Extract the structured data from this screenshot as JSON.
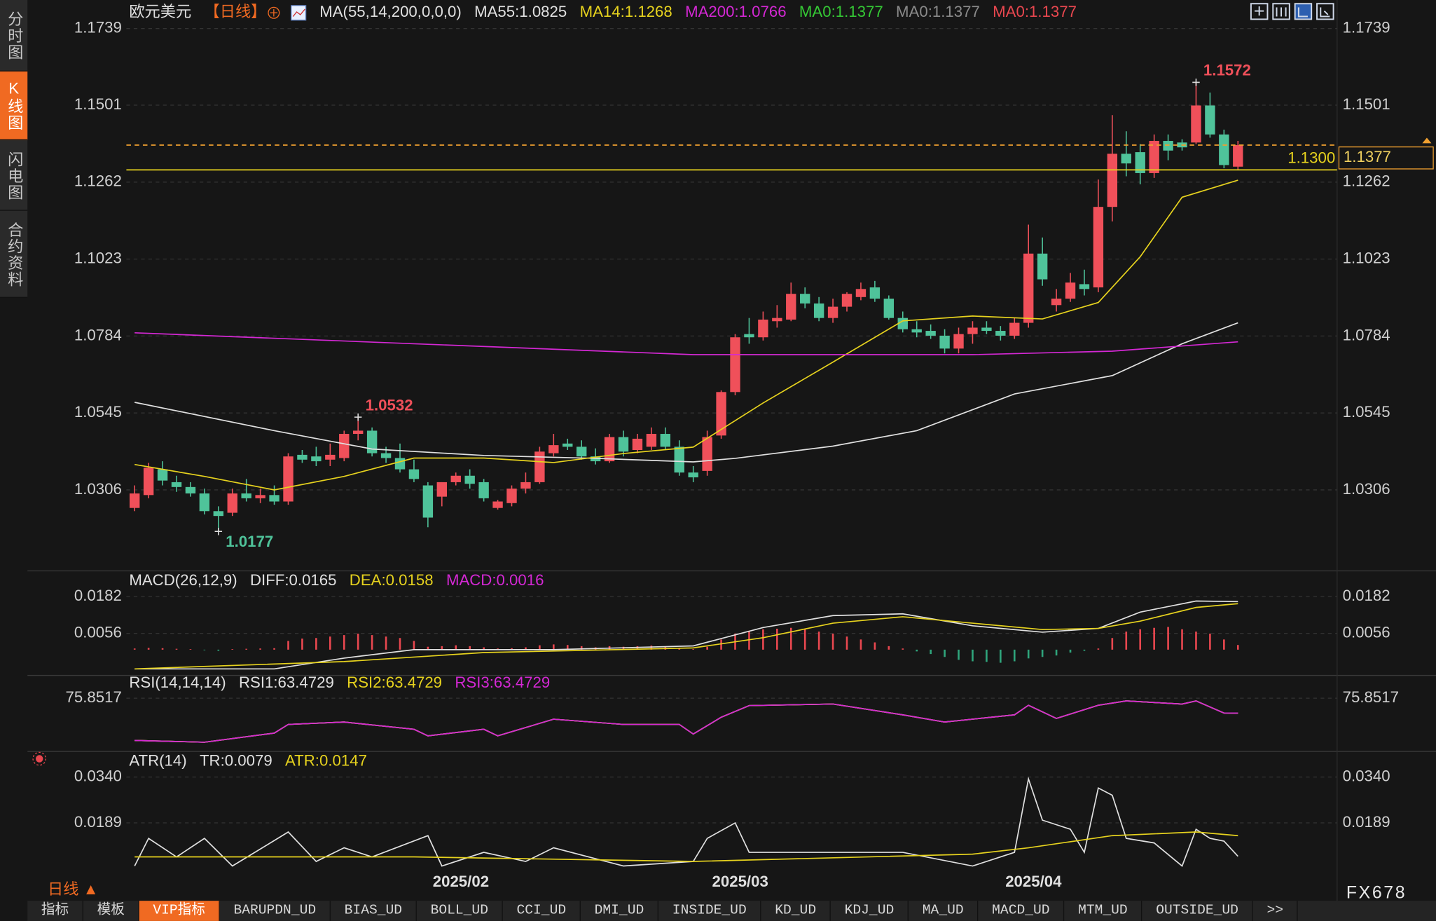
{
  "sidebar": {
    "tabs": [
      "分时图",
      "K线图",
      "闪电图",
      "合约资料"
    ],
    "active": 1
  },
  "chart_data": [
    {
      "type": "candlestick",
      "title": "欧元美元",
      "period": "【日线】",
      "indicator": "MA(55,14,200,0,0,0)",
      "up_color": "#f0505a",
      "down_color": "#4fc39a",
      "categories": [
        null,
        null,
        null,
        null,
        null,
        null,
        null,
        null,
        null,
        null,
        null,
        null,
        null,
        null,
        null,
        null,
        null,
        null,
        null,
        null,
        null,
        null,
        "2025/02",
        null,
        null,
        null,
        null,
        null,
        null,
        null,
        null,
        null,
        null,
        null,
        null,
        null,
        null,
        null,
        null,
        null,
        null,
        null,
        "2025/03",
        null,
        null,
        null,
        null,
        null,
        null,
        null,
        null,
        null,
        null,
        null,
        null,
        null,
        null,
        null,
        null,
        null,
        null,
        null,
        null,
        "2025/04",
        null,
        null,
        null,
        null,
        null,
        null,
        null,
        null,
        null,
        null,
        null,
        null,
        null,
        null,
        null,
        null
      ],
      "open": [
        1.025,
        1.029,
        1.037,
        1.033,
        1.0315,
        1.0295,
        1.024,
        1.0235,
        1.0295,
        1.028,
        1.029,
        1.027,
        1.0415,
        1.041,
        1.04,
        1.0405,
        1.048,
        1.049,
        1.042,
        1.0405,
        1.037,
        1.032,
        1.0285,
        1.033,
        1.035,
        1.033,
        1.025,
        1.0265,
        1.031,
        1.033,
        1.042,
        1.045,
        1.044,
        1.041,
        1.0395,
        1.047,
        1.043,
        1.044,
        1.048,
        1.044,
        1.036,
        1.0365,
        1.0475,
        1.061,
        1.079,
        1.078,
        1.083,
        1.0835,
        1.0915,
        1.0885,
        1.084,
        1.0875,
        1.0905,
        1.0935,
        1.09,
        1.084,
        1.0805,
        1.08,
        1.0785,
        1.0745,
        1.079,
        1.081,
        1.08,
        1.0785,
        1.0825,
        1.104,
        1.088,
        1.09,
        1.0945,
        1.0935,
        1.1185,
        1.135,
        1.1355,
        1.129,
        1.139,
        1.1385,
        1.1385,
        1.15,
        1.141,
        1.131
      ],
      "high": [
        1.032,
        1.039,
        1.0395,
        1.035,
        1.033,
        1.031,
        1.0255,
        1.031,
        1.034,
        1.031,
        1.032,
        1.042,
        1.043,
        1.044,
        1.045,
        1.049,
        1.0532,
        1.05,
        1.044,
        1.045,
        1.04,
        1.033,
        1.033,
        1.036,
        1.037,
        1.034,
        1.0275,
        1.032,
        1.036,
        1.044,
        1.048,
        1.0465,
        1.046,
        1.0435,
        1.048,
        1.049,
        1.048,
        1.05,
        1.05,
        1.046,
        1.038,
        1.049,
        1.0615,
        1.079,
        1.084,
        1.086,
        1.088,
        1.095,
        1.0935,
        1.0905,
        1.09,
        1.092,
        1.095,
        1.0955,
        1.091,
        1.086,
        1.083,
        1.082,
        1.0805,
        1.081,
        1.083,
        1.083,
        1.0815,
        1.084,
        1.113,
        1.109,
        1.093,
        1.098,
        1.099,
        1.127,
        1.147,
        1.142,
        1.138,
        1.141,
        1.141,
        1.1395,
        1.1572,
        1.154,
        1.1425,
        1.139
      ],
      "low": [
        1.024,
        1.028,
        1.032,
        1.03,
        1.0285,
        1.023,
        1.0177,
        1.0225,
        1.027,
        1.0265,
        1.026,
        1.026,
        1.039,
        1.038,
        1.038,
        1.0395,
        1.046,
        1.041,
        1.039,
        1.036,
        1.033,
        1.019,
        1.0255,
        1.032,
        1.031,
        1.027,
        1.0245,
        1.0255,
        1.0295,
        1.0325,
        1.041,
        1.043,
        1.04,
        1.0385,
        1.039,
        1.041,
        1.042,
        1.043,
        1.043,
        1.035,
        1.033,
        1.035,
        1.0465,
        1.06,
        1.076,
        1.077,
        1.081,
        1.083,
        1.087,
        1.083,
        1.0825,
        1.086,
        1.0895,
        1.089,
        1.0835,
        1.0795,
        1.078,
        1.0775,
        1.073,
        1.073,
        1.076,
        1.079,
        1.077,
        1.0775,
        1.081,
        1.094,
        1.086,
        1.089,
        1.091,
        1.092,
        1.114,
        1.128,
        1.1255,
        1.1275,
        1.133,
        1.136,
        1.138,
        1.14,
        1.1305,
        1.13
      ],
      "close": [
        1.0295,
        1.0375,
        1.0335,
        1.0315,
        1.0295,
        1.024,
        1.0225,
        1.0295,
        1.028,
        1.029,
        1.027,
        1.041,
        1.04,
        1.0395,
        1.0415,
        1.048,
        1.049,
        1.042,
        1.0405,
        1.037,
        1.034,
        1.022,
        1.033,
        1.035,
        1.0325,
        1.028,
        1.027,
        1.031,
        1.033,
        1.0425,
        1.0445,
        1.044,
        1.041,
        1.0395,
        1.047,
        1.0425,
        1.0465,
        1.048,
        1.044,
        1.036,
        1.0345,
        1.047,
        1.061,
        1.078,
        1.078,
        1.0835,
        1.084,
        1.0915,
        1.0885,
        1.084,
        1.0875,
        1.0915,
        1.093,
        1.09,
        1.084,
        1.0805,
        1.0795,
        1.0785,
        1.0745,
        1.079,
        1.081,
        1.08,
        1.0785,
        1.0825,
        1.104,
        1.096,
        1.09,
        1.095,
        1.093,
        1.1185,
        1.135,
        1.132,
        1.129,
        1.139,
        1.136,
        1.137,
        1.15,
        1.141,
        1.1315,
        1.1377
      ],
      "series": [
        {
          "name": "MA55:1.0825",
          "color": "#e0e0e0",
          "x": [
            0,
            10,
            17,
            25,
            33,
            40,
            43,
            50,
            56,
            63,
            70,
            75,
            79
          ],
          "values": [
            1.0578,
            1.049,
            1.0433,
            1.0413,
            1.0404,
            1.0393,
            1.0404,
            1.0442,
            1.049,
            1.0604,
            1.0661,
            1.076,
            1.0825
          ]
        },
        {
          "name": "MA14:1.1268",
          "color": "#e6d21e",
          "x": [
            0,
            5,
            10,
            15,
            20,
            25,
            30,
            35,
            40,
            45,
            50,
            55,
            60,
            65,
            69,
            72,
            75,
            79
          ],
          "values": [
            1.0385,
            1.0348,
            1.0306,
            1.0348,
            1.0405,
            1.0405,
            1.0391,
            1.0419,
            1.0439,
            1.0576,
            1.0703,
            1.0831,
            1.0846,
            1.0837,
            1.0888,
            1.103,
            1.1215,
            1.1268
          ]
        },
        {
          "name": "MA200:1.0766",
          "color": "#d428d4",
          "x": [
            0,
            20,
            40,
            60,
            70,
            79
          ],
          "values": [
            1.0794,
            1.076,
            1.0726,
            1.0726,
            1.0737,
            1.0766
          ]
        }
      ],
      "legend_extra": [
        {
          "name": "MA0:1.1377",
          "color": "#35c835"
        },
        {
          "name": "MA0:1.1377",
          "color": "#8a8a8a"
        },
        {
          "name": "MA0:1.1377",
          "color": "#e8474f"
        }
      ],
      "price_lines": [
        {
          "value": 1.13,
          "label": "1.1300",
          "color": "#e6d21e",
          "style": "solid"
        },
        {
          "value": 1.1377,
          "label": "1.1377",
          "color": "#f0a030",
          "style": "dashed"
        }
      ],
      "high_labels": [
        {
          "value": 1.1572,
          "label": "1.1572"
        },
        {
          "value": 1.0532,
          "label": "1.0532"
        }
      ],
      "low_labels": [
        {
          "value": 1.0177,
          "label": "1.0177"
        }
      ],
      "ylim": [
        1.0063,
        1.1765
      ],
      "yticks": [
        1.0306,
        1.0545,
        1.0784,
        1.1023,
        1.1262,
        1.1501,
        1.1739
      ],
      "grid": true
    },
    {
      "type": "combo",
      "title": "MACD(26,12,9)",
      "series": [
        {
          "name": "DIFF:0.0165",
          "color": "#e0e0e0",
          "x": [
            0,
            10,
            15,
            20,
            30,
            40,
            45,
            50,
            55,
            60,
            65,
            69,
            72,
            76,
            79
          ],
          "values": [
            -0.0066,
            -0.0066,
            -0.0029,
            0,
            0,
            0.0013,
            0.0076,
            0.0117,
            0.0123,
            0.0082,
            0.006,
            0.0073,
            0.0129,
            0.0167,
            0.0165
          ]
        },
        {
          "name": "DEA:0.0158",
          "color": "#e6d21e",
          "x": [
            0,
            15,
            25,
            40,
            45,
            50,
            55,
            60,
            65,
            69,
            72,
            76,
            79
          ],
          "values": [
            -0.0066,
            -0.0041,
            -0.001,
            0.0006,
            0.0041,
            0.0091,
            0.0113,
            0.0091,
            0.0069,
            0.0073,
            0.0098,
            0.0145,
            0.0158
          ]
        },
        {
          "name": "MACD:0.0016",
          "color": "#d428d4",
          "style": "bar",
          "up_color": "#e8474f",
          "down_color": "#2fa57c",
          "values": [
            0.0004,
            0.0006,
            0.0005,
            0.0003,
            0.0002,
            -0.0002,
            -0.0004,
            0.0002,
            0.0003,
            0.0004,
            0.0005,
            0.003,
            0.0038,
            0.004,
            0.0045,
            0.005,
            0.0055,
            0.005,
            0.0045,
            0.004,
            0.003,
            0.001,
            0.0012,
            0.0015,
            0.0012,
            0.0008,
            0.0004,
            0.0005,
            0.0008,
            0.0015,
            0.0018,
            0.0016,
            0.0012,
            0.0008,
            0.0012,
            0.001,
            0.0012,
            0.0014,
            0.001,
            0.0004,
            0.0002,
            0.001,
            0.0035,
            0.0055,
            0.0065,
            0.007,
            0.0072,
            0.0075,
            0.007,
            0.0062,
            0.0055,
            0.0045,
            0.0035,
            0.0025,
            0.0012,
            0.0004,
            -0.0006,
            -0.0015,
            -0.0025,
            -0.0035,
            -0.004,
            -0.0042,
            -0.0045,
            -0.004,
            -0.003,
            -0.0025,
            -0.002,
            -0.001,
            -0.0004,
            0.0004,
            0.004,
            0.0062,
            0.007,
            0.0075,
            0.0078,
            0.007,
            0.0062,
            0.0055,
            0.0035,
            0.0016
          ]
        }
      ],
      "ylim": [
        -0.0082,
        0.0217
      ],
      "yticks": [
        0.0056,
        0.0182
      ],
      "grid": true
    },
    {
      "type": "line",
      "title": "RSI(14,14,14)",
      "series": [
        {
          "name": "RSI1:63.4729",
          "color": "#e0e0e0",
          "x": [
            0,
            5,
            10,
            11,
            15,
            20,
            21,
            25,
            26,
            30,
            35,
            39,
            40,
            42,
            44,
            50,
            55,
            58,
            63,
            64,
            66,
            69,
            71,
            75,
            76,
            78,
            79
          ],
          "values": [
            40.7,
            39.2,
            46.8,
            54,
            56,
            50,
            44.5,
            50,
            44.5,
            58.4,
            54,
            54,
            46,
            60,
            69.7,
            71,
            62,
            56,
            62,
            70,
            59,
            70,
            73.6,
            71,
            73.6,
            63.5,
            63.4729
          ]
        },
        {
          "name": "RSI2:63.4729",
          "color": "#e6d21e",
          "x": [
            0,
            5,
            10,
            11,
            15,
            20,
            21,
            25,
            26,
            30,
            35,
            39,
            40,
            42,
            44,
            50,
            55,
            58,
            63,
            64,
            66,
            69,
            71,
            75,
            76,
            78,
            79
          ],
          "values": [
            40.7,
            39.2,
            46.8,
            54,
            56,
            50,
            44.5,
            50,
            44.5,
            58.4,
            54,
            54,
            46,
            60,
            69.7,
            71,
            62,
            56,
            62,
            70,
            59,
            70,
            73.6,
            71,
            73.6,
            63.5,
            63.4729
          ]
        },
        {
          "name": "RSI3:63.4729",
          "color": "#d428d4",
          "x": [
            0,
            5,
            10,
            11,
            15,
            20,
            21,
            25,
            26,
            30,
            35,
            39,
            40,
            42,
            44,
            50,
            55,
            58,
            63,
            64,
            66,
            69,
            71,
            75,
            76,
            78,
            79
          ],
          "values": [
            40.7,
            39.2,
            46.8,
            54,
            56,
            50,
            44.5,
            50,
            44.5,
            58.4,
            54,
            54,
            46,
            60,
            69.7,
            71,
            62,
            56,
            62,
            70,
            59,
            70,
            73.6,
            71,
            73.6,
            63.5,
            63.4729
          ]
        }
      ],
      "ylim": [
        30,
        92.6
      ],
      "yticks": [
        75.8517
      ],
      "grid": true
    },
    {
      "type": "line",
      "title": "ATR(14)",
      "series": [
        {
          "name": "TR:0.0079",
          "color": "#e0e0e0",
          "x": [
            0,
            1,
            3,
            5,
            7,
            11,
            13,
            15,
            17,
            21,
            22,
            25,
            28,
            30,
            35,
            40,
            41,
            43,
            44,
            50,
            55,
            60,
            63,
            64,
            65,
            67,
            68,
            69,
            70,
            71,
            73,
            75,
            76,
            77,
            78,
            79
          ],
          "values": [
            0.0047,
            0.0138,
            0.0077,
            0.0138,
            0.0047,
            0.0159,
            0.0062,
            0.0107,
            0.0077,
            0.0147,
            0.0047,
            0.0092,
            0.0062,
            0.0107,
            0.0047,
            0.0062,
            0.0138,
            0.0189,
            0.0092,
            0.0092,
            0.0092,
            0.0047,
            0.0092,
            0.0334,
            0.0198,
            0.0168,
            0.0092,
            0.0304,
            0.028,
            0.0138,
            0.0123,
            0.0047,
            0.0168,
            0.0138,
            0.0129,
            0.0079
          ]
        },
        {
          "name": "ATR:0.0147",
          "color": "#e6d21e",
          "x": [
            0,
            20,
            40,
            60,
            64,
            70,
            76,
            79
          ],
          "values": [
            0.0077,
            0.0077,
            0.0062,
            0.0086,
            0.0107,
            0.0147,
            0.0159,
            0.0147
          ]
        }
      ],
      "ylim": [
        0.0032,
        0.0364
      ],
      "yticks": [
        0.0189,
        {
          "value": 0.034,
          "label": "0.0340"
        }
      ],
      "grid": true
    }
  ],
  "footer": {
    "period": "日线 ▲",
    "brand": "FX678",
    "tabs": [
      "指标",
      "模板",
      "VIP指标",
      "BARUPDN_UD",
      "BIAS_UD",
      "BOLL_UD",
      "CCI_UD",
      "DMI_UD",
      "INSIDE_UD",
      "KD_UD",
      "KDJ_UD",
      "MA_UD",
      "MACD_UD",
      "MTM_UD",
      "OUTSIDE_UD",
      ">>"
    ],
    "active": 2
  }
}
